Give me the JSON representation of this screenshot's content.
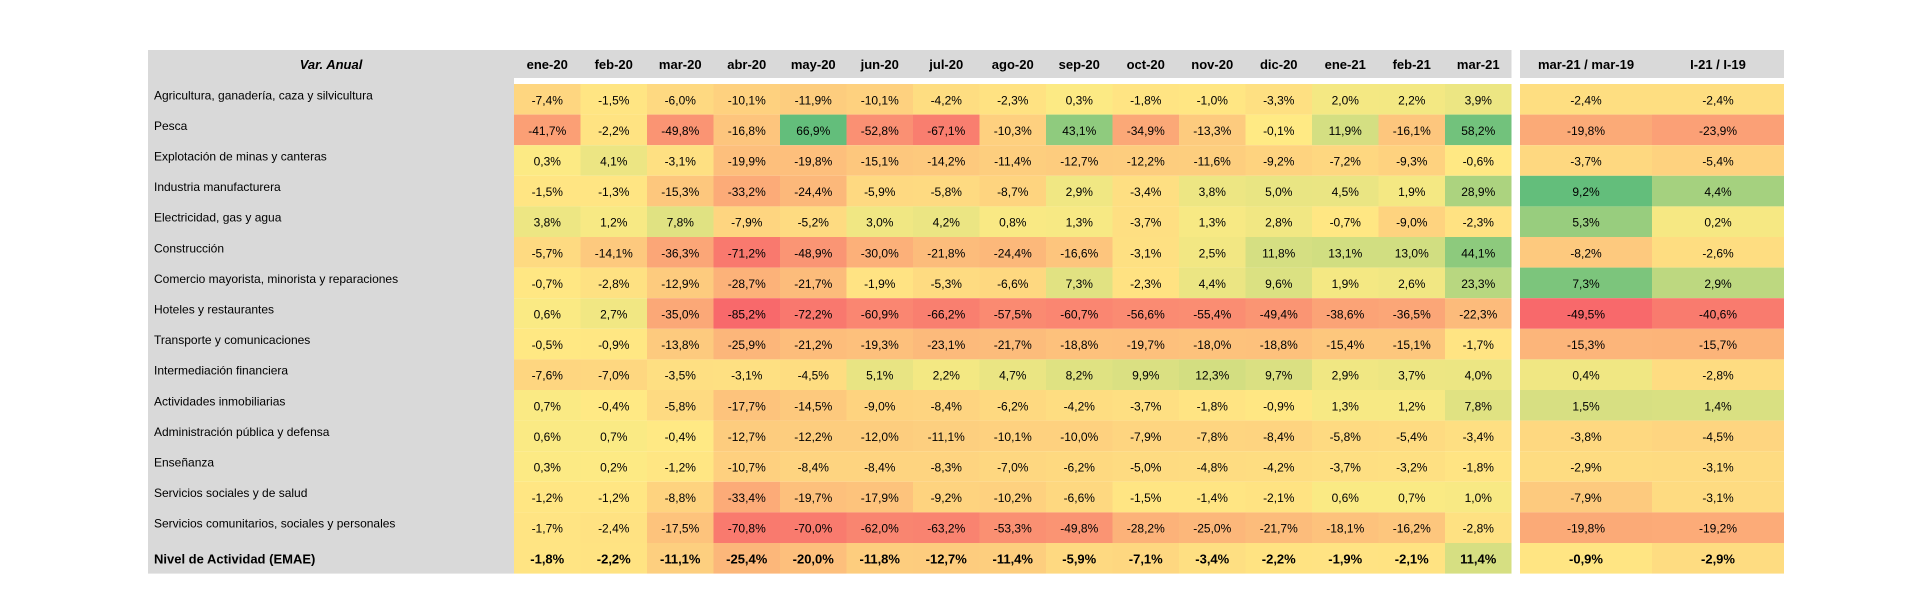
{
  "chart_data": {
    "type": "heatmap",
    "title": "Var. Anual",
    "columns": [
      "ene-20",
      "feb-20",
      "mar-20",
      "abr-20",
      "may-20",
      "jun-20",
      "jul-20",
      "ago-20",
      "sep-20",
      "oct-20",
      "nov-20",
      "dic-20",
      "ene-21",
      "feb-21",
      "mar-21"
    ],
    "summary_columns": [
      "mar-21 / mar-19",
      "I-21 / I-19"
    ],
    "rows": [
      {
        "label": "Agricultura, ganadería, caza y silvicultura",
        "values": [
          -7.4,
          -1.5,
          -6.0,
          -10.1,
          -11.9,
          -10.1,
          -4.2,
          -2.3,
          0.3,
          -1.8,
          -1.0,
          -3.3,
          2.0,
          2.2,
          3.9
        ],
        "summary": [
          -2.4,
          -2.4
        ]
      },
      {
        "label": "Pesca",
        "values": [
          -41.7,
          -2.2,
          -49.8,
          -16.8,
          66.9,
          -52.8,
          -67.1,
          -10.3,
          43.1,
          -34.9,
          -13.3,
          -0.1,
          11.9,
          -16.1,
          58.2
        ],
        "summary": [
          -19.8,
          -23.9
        ]
      },
      {
        "label": "Explotación de minas y canteras",
        "values": [
          0.3,
          4.1,
          -3.1,
          -19.9,
          -19.8,
          -15.1,
          -14.2,
          -11.4,
          -12.7,
          -12.2,
          -11.6,
          -9.2,
          -7.2,
          -9.3,
          -0.6
        ],
        "summary": [
          -3.7,
          -5.4
        ]
      },
      {
        "label": "Industria manufacturera",
        "values": [
          -1.5,
          -1.3,
          -15.3,
          -33.2,
          -24.4,
          -5.9,
          -5.8,
          -8.7,
          2.9,
          -3.4,
          3.8,
          5.0,
          4.5,
          1.9,
          28.9
        ],
        "summary": [
          9.2,
          4.4
        ]
      },
      {
        "label": "Electricidad, gas y agua",
        "values": [
          3.8,
          1.2,
          7.8,
          -7.9,
          -5.2,
          3.0,
          4.2,
          0.8,
          1.3,
          -3.7,
          1.3,
          2.8,
          -0.7,
          -9.0,
          -2.3
        ],
        "summary": [
          5.3,
          0.2
        ]
      },
      {
        "label": "Construcción",
        "values": [
          -5.7,
          -14.1,
          -36.3,
          -71.2,
          -48.9,
          -30.0,
          -21.8,
          -24.4,
          -16.6,
          -3.1,
          2.5,
          11.8,
          13.1,
          13.0,
          44.1
        ],
        "summary": [
          -8.2,
          -2.6
        ]
      },
      {
        "label": "Comercio mayorista, minorista y reparaciones",
        "values": [
          -0.7,
          -2.8,
          -12.9,
          -28.7,
          -21.7,
          -1.9,
          -5.3,
          -6.6,
          7.3,
          -2.3,
          4.4,
          9.6,
          1.9,
          2.6,
          23.3
        ],
        "summary": [
          7.3,
          2.9
        ]
      },
      {
        "label": "Hoteles y restaurantes",
        "values": [
          0.6,
          2.7,
          -35.0,
          -85.2,
          -72.2,
          -60.9,
          -66.2,
          -57.5,
          -60.7,
          -56.6,
          -55.4,
          -49.4,
          -38.6,
          -36.5,
          -22.3
        ],
        "summary": [
          -49.5,
          -40.6
        ]
      },
      {
        "label": "Transporte y comunicaciones",
        "values": [
          -0.5,
          -0.9,
          -13.8,
          -25.9,
          -21.2,
          -19.3,
          -23.1,
          -21.7,
          -18.8,
          -19.7,
          -18.0,
          -18.8,
          -15.4,
          -15.1,
          -1.7
        ],
        "summary": [
          -15.3,
          -15.7
        ]
      },
      {
        "label": "Intermediación financiera",
        "values": [
          -7.6,
          -7.0,
          -3.5,
          -3.1,
          -4.5,
          5.1,
          2.2,
          4.7,
          8.2,
          9.9,
          12.3,
          9.7,
          2.9,
          3.7,
          4.0
        ],
        "summary": [
          0.4,
          -2.8
        ]
      },
      {
        "label": "Actividades inmobiliarias",
        "values": [
          0.7,
          -0.4,
          -5.8,
          -17.7,
          -14.5,
          -9.0,
          -8.4,
          -6.2,
          -4.2,
          -3.7,
          -1.8,
          -0.9,
          1.3,
          1.2,
          7.8
        ],
        "summary": [
          1.5,
          1.4
        ]
      },
      {
        "label": "Administración pública y defensa",
        "values": [
          0.6,
          0.7,
          -0.4,
          -12.7,
          -12.2,
          -12.0,
          -11.1,
          -10.1,
          -10.0,
          -7.9,
          -7.8,
          -8.4,
          -5.8,
          -5.4,
          -3.4
        ],
        "summary": [
          -3.8,
          -4.5
        ]
      },
      {
        "label": "Enseñanza",
        "values": [
          0.3,
          0.2,
          -1.2,
          -10.7,
          -8.4,
          -8.4,
          -8.3,
          -7.0,
          -6.2,
          -5.0,
          -4.8,
          -4.2,
          -3.7,
          -3.2,
          -1.8
        ],
        "summary": [
          -2.9,
          -3.1
        ]
      },
      {
        "label": "Servicios sociales y de salud",
        "values": [
          -1.2,
          -1.2,
          -8.8,
          -33.4,
          -19.7,
          -17.9,
          -9.2,
          -10.2,
          -6.6,
          -1.5,
          -1.4,
          -2.1,
          0.6,
          0.7,
          1.0
        ],
        "summary": [
          -7.9,
          -3.1
        ]
      },
      {
        "label": "Servicios comunitarios, sociales y personales",
        "values": [
          -1.7,
          -2.4,
          -17.5,
          -70.8,
          -70.0,
          -62.0,
          -63.2,
          -53.3,
          -49.8,
          -28.2,
          -25.0,
          -21.7,
          -18.1,
          -16.2,
          -2.8
        ],
        "summary": [
          -19.8,
          -19.2
        ]
      },
      {
        "label": "Nivel de Actividad (EMAE)",
        "values": [
          -1.8,
          -2.2,
          -11.1,
          -25.4,
          -20.0,
          -11.8,
          -12.7,
          -11.4,
          -5.9,
          -7.1,
          -3.4,
          -2.2,
          -1.9,
          -2.1,
          11.4
        ],
        "summary": [
          -0.9,
          -2.9
        ],
        "bold": true
      }
    ],
    "colors": {
      "label_bg": "#d9d9d9",
      "header_bg": "#d9d9d9",
      "neutral": "#ffeb84",
      "positive": "#63be7b",
      "negative": "#f8696b",
      "white": "#ffffff"
    }
  }
}
